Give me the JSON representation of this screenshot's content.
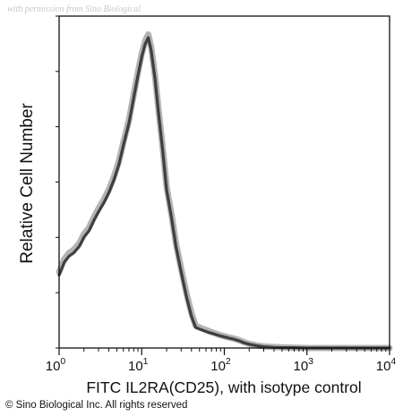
{
  "watermark": "with permission from Sino Biological",
  "copyright": "© Sino Biological Inc. All rights reserved",
  "chart_data": {
    "type": "area",
    "title": "",
    "xlabel": "FITC IL2RA(CD25), with isotype control",
    "ylabel": "Relative Cell Number",
    "xscale": "log",
    "xlim": [
      1,
      10000
    ],
    "ylim": [
      0,
      1
    ],
    "grid": false,
    "x_ticks": [
      {
        "value": 1,
        "base": "10",
        "exp": "0"
      },
      {
        "value": 10,
        "base": "10",
        "exp": "1"
      },
      {
        "value": 100,
        "base": "10",
        "exp": "2"
      },
      {
        "value": 1000,
        "base": "10",
        "exp": "3"
      },
      {
        "value": 10000,
        "base": "10",
        "exp": "4"
      }
    ],
    "series": [
      {
        "color": "#777777",
        "x": [
          1.0,
          1.15,
          1.32,
          1.5,
          1.75,
          2.0,
          2.3,
          2.6,
          3.0,
          3.5,
          4.0,
          4.6,
          5.3,
          6.0,
          7.0,
          8.0,
          9.0,
          10.0,
          11.0,
          12.0,
          13.0,
          14.5,
          16.0,
          18.0,
          20.0,
          23.0,
          26.0,
          30.0,
          35.0,
          40.0,
          45.0,
          50.0,
          56.0,
          63.0,
          70.0,
          80.0,
          90.0,
          100.0,
          115.0,
          130.0,
          150.0,
          175.0,
          200.0,
          250.0,
          300.0,
          400.0,
          500.0,
          700.0,
          1000.0,
          2000.0,
          5000.0,
          10000.0
        ],
        "values": [
          0.24,
          0.28,
          0.3,
          0.31,
          0.33,
          0.36,
          0.38,
          0.41,
          0.44,
          0.47,
          0.5,
          0.54,
          0.59,
          0.65,
          0.72,
          0.8,
          0.87,
          0.93,
          0.97,
          0.99,
          0.95,
          0.86,
          0.75,
          0.63,
          0.51,
          0.42,
          0.33,
          0.25,
          0.17,
          0.11,
          0.07,
          0.065,
          0.06,
          0.055,
          0.05,
          0.045,
          0.04,
          0.037,
          0.033,
          0.03,
          0.025,
          0.018,
          0.013,
          0.008,
          0.005,
          0.003,
          0.002,
          0.001,
          0.0,
          0.0,
          0.0,
          0.0
        ]
      },
      {
        "color": "#2a2a2a",
        "x": [
          1.0,
          1.15,
          1.32,
          1.5,
          1.75,
          2.0,
          2.3,
          2.6,
          3.0,
          3.5,
          4.0,
          4.6,
          5.3,
          6.0,
          7.0,
          8.0,
          9.0,
          10.0,
          11.0,
          12.0,
          13.0,
          14.5,
          16.0,
          18.0,
          20.0,
          23.0,
          26.0,
          30.0,
          35.0,
          40.0,
          45.0,
          50.0,
          56.0,
          63.0,
          70.0,
          80.0,
          90.0,
          100.0,
          115.0,
          130.0,
          150.0,
          175.0,
          200.0,
          250.0,
          300.0,
          400.0,
          500.0,
          700.0,
          1000.0,
          2000.0,
          5000.0,
          10000.0
        ],
        "values": [
          0.23,
          0.27,
          0.29,
          0.3,
          0.32,
          0.35,
          0.37,
          0.4,
          0.43,
          0.46,
          0.49,
          0.53,
          0.58,
          0.64,
          0.71,
          0.79,
          0.86,
          0.92,
          0.96,
          0.98,
          0.94,
          0.85,
          0.74,
          0.62,
          0.5,
          0.41,
          0.32,
          0.24,
          0.16,
          0.1,
          0.065,
          0.06,
          0.055,
          0.05,
          0.047,
          0.042,
          0.038,
          0.035,
          0.031,
          0.028,
          0.023,
          0.016,
          0.012,
          0.007,
          0.004,
          0.002,
          0.001,
          0.001,
          0.0,
          0.0,
          0.0,
          0.0
        ]
      }
    ]
  }
}
